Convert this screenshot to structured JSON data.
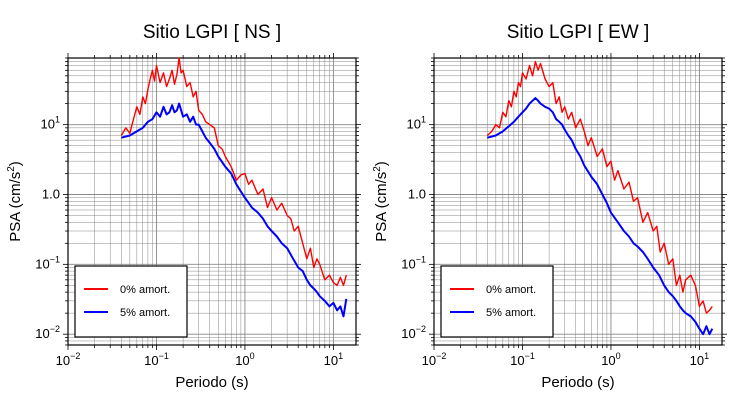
{
  "colors": {
    "undamped": "#ff0000",
    "damped": "#0000ff",
    "grid": "#888888",
    "frame": "#000000"
  },
  "chart_data": [
    {
      "type": "line",
      "title": "Sitio LGPI [ NS ]",
      "xlabel": "Periodo (s)",
      "ylabel": "PSA (cm/s",
      "ylabel_sup": "2",
      "ylabel_end": ")",
      "xscale": "log",
      "yscale": "log",
      "xlim": [
        0.01,
        18
      ],
      "ylim": [
        0.007,
        90
      ],
      "xticks": [
        {
          "value": 0.01,
          "base": "10",
          "exp": "−2"
        },
        {
          "value": 0.1,
          "base": "10",
          "exp": "−1"
        },
        {
          "value": 1,
          "base": "10",
          "exp": "0"
        },
        {
          "value": 10,
          "base": "10",
          "exp": "1"
        }
      ],
      "yticks": [
        {
          "value": 0.01,
          "base": "10",
          "exp": "−2"
        },
        {
          "value": 0.1,
          "base": "10",
          "exp": "−1"
        },
        {
          "value": 1,
          "base": "1.0",
          "exp": ""
        },
        {
          "value": 10,
          "base": "10",
          "exp": "1"
        }
      ],
      "grid": true,
      "legend_position": "bottom-left",
      "series": [
        {
          "name": "0% amort.",
          "color": "#ff0000",
          "x": [
            0.04,
            0.045,
            0.05,
            0.055,
            0.06,
            0.065,
            0.07,
            0.075,
            0.08,
            0.085,
            0.09,
            0.095,
            0.1,
            0.11,
            0.12,
            0.13,
            0.14,
            0.15,
            0.16,
            0.17,
            0.18,
            0.19,
            0.2,
            0.22,
            0.24,
            0.26,
            0.28,
            0.3,
            0.33,
            0.36,
            0.4,
            0.45,
            0.5,
            0.55,
            0.6,
            0.7,
            0.8,
            0.9,
            1.0,
            1.1,
            1.2,
            1.4,
            1.6,
            1.8,
            2.0,
            2.3,
            2.6,
            3.0,
            3.3,
            3.6,
            4.0,
            4.5,
            5.0,
            5.5,
            6.0,
            6.5,
            7.0,
            8.0,
            9.0,
            10.0,
            11.0,
            12.0,
            13.0,
            14.0
          ],
          "y": [
            7,
            9,
            7.5,
            12,
            18,
            14,
            25,
            20,
            32,
            45,
            60,
            42,
            70,
            40,
            55,
            35,
            45,
            60,
            38,
            52,
            90,
            55,
            60,
            35,
            40,
            25,
            30,
            16,
            14,
            11,
            10,
            9,
            5,
            4.5,
            3.5,
            2.5,
            1.6,
            1.9,
            2.0,
            1.4,
            1.6,
            1.0,
            1.2,
            0.65,
            0.9,
            0.6,
            0.75,
            0.5,
            0.45,
            0.3,
            0.35,
            0.2,
            0.12,
            0.17,
            0.09,
            0.12,
            0.1,
            0.06,
            0.07,
            0.055,
            0.05,
            0.065,
            0.05,
            0.07
          ]
        },
        {
          "name": "5% amort.",
          "color": "#0000ff",
          "x": [
            0.04,
            0.05,
            0.06,
            0.07,
            0.08,
            0.09,
            0.1,
            0.11,
            0.12,
            0.13,
            0.14,
            0.15,
            0.16,
            0.17,
            0.18,
            0.2,
            0.22,
            0.24,
            0.26,
            0.28,
            0.3,
            0.33,
            0.36,
            0.4,
            0.45,
            0.5,
            0.6,
            0.7,
            0.8,
            0.9,
            1.0,
            1.2,
            1.4,
            1.6,
            1.8,
            2.0,
            2.3,
            2.6,
            3.0,
            3.5,
            4.0,
            4.5,
            5.0,
            5.5,
            6.0,
            6.5,
            7.0,
            8.0,
            9.0,
            10.0,
            11.0,
            12.0,
            13.0,
            14.0
          ],
          "y": [
            6.5,
            7,
            8,
            9,
            11,
            12,
            15,
            13,
            18,
            14,
            15,
            19,
            15,
            16,
            20,
            13,
            14,
            11,
            13,
            10,
            10,
            8,
            6.5,
            5.5,
            4.5,
            3.5,
            2.5,
            2.0,
            1.4,
            1.1,
            0.9,
            0.65,
            0.55,
            0.45,
            0.35,
            0.3,
            0.25,
            0.2,
            0.17,
            0.12,
            0.09,
            0.08,
            0.06,
            0.05,
            0.045,
            0.04,
            0.035,
            0.03,
            0.025,
            0.028,
            0.022,
            0.025,
            0.018,
            0.032
          ]
        }
      ]
    },
    {
      "type": "line",
      "title": "Sitio LGPI [ EW ]",
      "xlabel": "Periodo (s)",
      "ylabel": "PSA (cm/s",
      "ylabel_sup": "2",
      "ylabel_end": ")",
      "xscale": "log",
      "yscale": "log",
      "xlim": [
        0.01,
        18
      ],
      "ylim": [
        0.007,
        90
      ],
      "xticks": [
        {
          "value": 0.01,
          "base": "10",
          "exp": "−2"
        },
        {
          "value": 0.1,
          "base": "10",
          "exp": "−1"
        },
        {
          "value": 1,
          "base": "10",
          "exp": "0"
        },
        {
          "value": 10,
          "base": "10",
          "exp": "1"
        }
      ],
      "yticks": [
        {
          "value": 0.01,
          "base": "10",
          "exp": "−2"
        },
        {
          "value": 0.1,
          "base": "10",
          "exp": "−1"
        },
        {
          "value": 1,
          "base": "1.0",
          "exp": ""
        },
        {
          "value": 10,
          "base": "10",
          "exp": "1"
        }
      ],
      "grid": true,
      "legend_position": "bottom-left",
      "series": [
        {
          "name": "0% amort.",
          "color": "#ff0000",
          "x": [
            0.04,
            0.045,
            0.05,
            0.055,
            0.06,
            0.065,
            0.07,
            0.075,
            0.08,
            0.085,
            0.09,
            0.095,
            0.1,
            0.11,
            0.12,
            0.13,
            0.14,
            0.15,
            0.16,
            0.18,
            0.2,
            0.22,
            0.24,
            0.26,
            0.28,
            0.3,
            0.33,
            0.36,
            0.4,
            0.45,
            0.5,
            0.55,
            0.6,
            0.7,
            0.8,
            0.9,
            1.0,
            1.1,
            1.2,
            1.4,
            1.6,
            1.8,
            2.0,
            2.3,
            2.6,
            3.0,
            3.3,
            3.6,
            4.0,
            4.5,
            5.0,
            5.5,
            6.0,
            6.5,
            7.0,
            8.0,
            9.0,
            10.0,
            11.0,
            12.0,
            13.0,
            14.0
          ],
          "y": [
            7,
            8,
            10,
            9,
            15,
            13,
            22,
            18,
            30,
            25,
            40,
            35,
            55,
            45,
            70,
            50,
            80,
            60,
            75,
            45,
            35,
            40,
            20,
            25,
            15,
            18,
            12,
            15,
            9,
            12,
            8,
            5,
            6.5,
            3.5,
            4.5,
            2.5,
            3.0,
            1.6,
            2.2,
            1.2,
            1.5,
            0.8,
            0.9,
            0.4,
            0.55,
            0.3,
            0.35,
            0.15,
            0.2,
            0.1,
            0.12,
            0.05,
            0.07,
            0.04,
            0.06,
            0.07,
            0.05,
            0.025,
            0.03,
            0.02,
            0.022,
            0.025
          ]
        },
        {
          "name": "5% amort.",
          "color": "#0000ff",
          "x": [
            0.04,
            0.05,
            0.06,
            0.07,
            0.08,
            0.09,
            0.1,
            0.11,
            0.12,
            0.13,
            0.14,
            0.15,
            0.16,
            0.18,
            0.2,
            0.22,
            0.24,
            0.26,
            0.28,
            0.3,
            0.33,
            0.36,
            0.4,
            0.45,
            0.5,
            0.6,
            0.7,
            0.8,
            0.9,
            1.0,
            1.2,
            1.4,
            1.6,
            1.8,
            2.0,
            2.3,
            2.6,
            3.0,
            3.5,
            4.0,
            4.5,
            5.0,
            5.5,
            6.0,
            6.5,
            7.0,
            8.0,
            9.0,
            10.0,
            11.0,
            12.0,
            13.0,
            14.0
          ],
          "y": [
            6.5,
            7,
            8,
            9.5,
            11,
            13,
            15,
            17,
            20,
            22,
            24,
            22,
            20,
            18,
            17,
            15,
            12,
            11,
            10,
            8.5,
            7,
            6,
            4.5,
            3.5,
            2.6,
            1.8,
            1.4,
            1.0,
            0.75,
            0.55,
            0.4,
            0.3,
            0.25,
            0.2,
            0.18,
            0.15,
            0.12,
            0.09,
            0.07,
            0.05,
            0.04,
            0.035,
            0.03,
            0.025,
            0.022,
            0.02,
            0.018,
            0.015,
            0.012,
            0.01,
            0.013,
            0.01,
            0.012
          ]
        }
      ]
    }
  ]
}
